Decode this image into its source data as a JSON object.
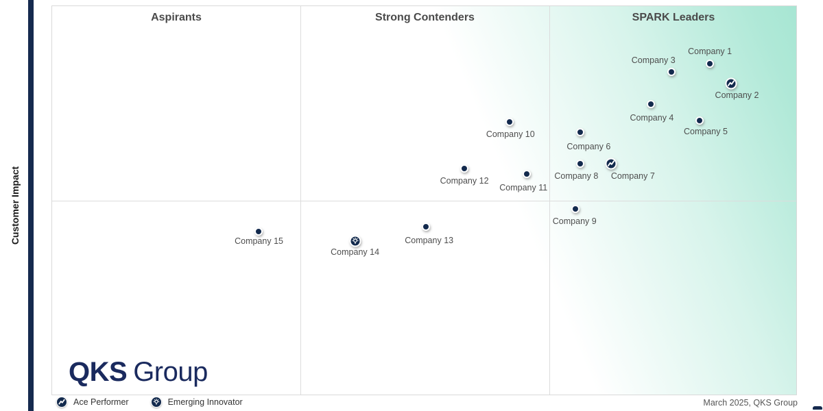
{
  "colors": {
    "navy": "#152a4e",
    "marker_navy": "#132a4d",
    "mint": "#a7e6d3",
    "logo_navy": "#1a2a5e"
  },
  "chart_data": {
    "type": "scatter",
    "quadrants": [
      "Aspirants",
      "Strong Contenders",
      "SPARK Leaders"
    ],
    "ylabel": "Customer Impact",
    "xlabel": "",
    "axis_ranges": {
      "x_pct": [
        0,
        100
      ],
      "y_pct": [
        0,
        100
      ]
    },
    "legend_position": "bottom-left",
    "grid": "3-column 2-row quadrant grid",
    "series": [
      {
        "name": "Company 1",
        "x_pct": 88.4,
        "y_pct": 14.9,
        "marker": "standard",
        "label_dx": 0,
        "label_dy": -18
      },
      {
        "name": "Company 2",
        "x_pct": 91.2,
        "y_pct": 20.0,
        "marker": "ace",
        "label_dx": 9,
        "label_dy": 17
      },
      {
        "name": "Company 3",
        "x_pct": 83.2,
        "y_pct": 17.0,
        "marker": "standard",
        "label_dx": -26,
        "label_dy": -17
      },
      {
        "name": "Company 4",
        "x_pct": 80.5,
        "y_pct": 25.3,
        "marker": "standard",
        "label_dx": 1,
        "label_dy": 20
      },
      {
        "name": "Company 5",
        "x_pct": 87.0,
        "y_pct": 29.5,
        "marker": "standard",
        "label_dx": 9,
        "label_dy": 16
      },
      {
        "name": "Company 6",
        "x_pct": 71.0,
        "y_pct": 32.5,
        "marker": "standard",
        "label_dx": 12,
        "label_dy": 21
      },
      {
        "name": "Company 7",
        "x_pct": 75.1,
        "y_pct": 40.6,
        "marker": "ace",
        "label_dx": 32,
        "label_dy": 18
      },
      {
        "name": "Company 8",
        "x_pct": 71.0,
        "y_pct": 40.6,
        "marker": "standard",
        "label_dx": -6,
        "label_dy": 18
      },
      {
        "name": "Company 9",
        "x_pct": 70.3,
        "y_pct": 52.2,
        "marker": "standard",
        "label_dx": -1,
        "label_dy": 18
      },
      {
        "name": "Company 10",
        "x_pct": 61.5,
        "y_pct": 29.8,
        "marker": "standard",
        "label_dx": 1,
        "label_dy": 18
      },
      {
        "name": "Company 11",
        "x_pct": 63.8,
        "y_pct": 43.2,
        "marker": "standard",
        "label_dx": -5,
        "label_dy": 20
      },
      {
        "name": "Company 12",
        "x_pct": 55.4,
        "y_pct": 41.8,
        "marker": "standard",
        "label_dx": 0,
        "label_dy": 18
      },
      {
        "name": "Company 13",
        "x_pct": 50.2,
        "y_pct": 56.8,
        "marker": "standard",
        "label_dx": 5,
        "label_dy": 20
      },
      {
        "name": "Company 14",
        "x_pct": 40.7,
        "y_pct": 60.5,
        "marker": "innovator",
        "label_dx": 0,
        "label_dy": 16
      },
      {
        "name": "Company 15",
        "x_pct": 27.7,
        "y_pct": 58.0,
        "marker": "standard",
        "label_dx": 1,
        "label_dy": 14
      }
    ]
  },
  "legend": {
    "items": [
      {
        "icon": "ace-performer-icon",
        "label": "Ace Performer"
      },
      {
        "icon": "emerging-innovator-icon",
        "label": "Emerging Innovator"
      }
    ]
  },
  "logo": {
    "bold": "QKS",
    "light": "Group"
  },
  "footer": {
    "date_note": "March 2025, QKS Group"
  }
}
